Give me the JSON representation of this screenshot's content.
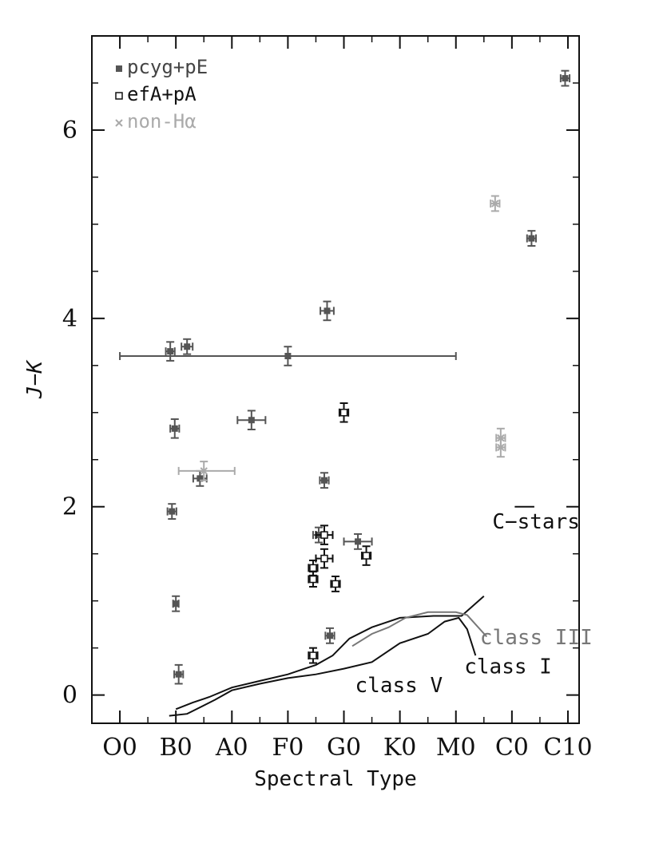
{
  "chart_data": {
    "type": "scatter",
    "xlabel": "Spectral Type",
    "ylabel": "J−K",
    "xlim": [
      -0.5,
      8.2
    ],
    "ylim": [
      -0.3,
      7.0
    ],
    "x_ticks": [
      {
        "value": 0,
        "label": "O0"
      },
      {
        "value": 1,
        "label": "B0"
      },
      {
        "value": 2,
        "label": "A0"
      },
      {
        "value": 3,
        "label": "F0"
      },
      {
        "value": 4,
        "label": "G0"
      },
      {
        "value": 5,
        "label": "K0"
      },
      {
        "value": 6,
        "label": "M0"
      },
      {
        "value": 7,
        "label": "C0"
      },
      {
        "value": 8,
        "label": "C10"
      }
    ],
    "y_ticks": [
      {
        "value": 0,
        "label": "0"
      },
      {
        "value": 2,
        "label": "2"
      },
      {
        "value": 4,
        "label": "4"
      },
      {
        "value": 6,
        "label": "6"
      }
    ],
    "y_minor_step": 0.5,
    "x_minor_step": 0.5,
    "legend_position": "top-left",
    "series": [
      {
        "name": "pcyg+pE",
        "marker": "filled-square",
        "color": "#555555",
        "points": [
          {
            "x": 0.9,
            "y": 3.65,
            "xerr": 0.08,
            "yerr": 0.1
          },
          {
            "x": 1.2,
            "y": 3.7,
            "xerr": 0.1,
            "yerr": 0.08
          },
          {
            "x": 3.0,
            "y": 3.6,
            "xerr_low": 3.0,
            "xerr_high": 3.0,
            "yerr": 0.1
          },
          {
            "x": 3.7,
            "y": 4.08,
            "xerr": 0.12,
            "yerr": 0.1
          },
          {
            "x": 0.98,
            "y": 2.83,
            "xerr": 0.08,
            "yerr": 0.1
          },
          {
            "x": 2.35,
            "y": 2.92,
            "xerr": 0.25,
            "yerr": 0.1
          },
          {
            "x": 1.43,
            "y": 2.3,
            "xerr": 0.12,
            "yerr": 0.08
          },
          {
            "x": 3.65,
            "y": 2.28,
            "xerr": 0.08,
            "yerr": 0.08
          },
          {
            "x": 0.93,
            "y": 1.95,
            "xerr": 0.08,
            "yerr": 0.08
          },
          {
            "x": 1.0,
            "y": 0.97,
            "xerr": 0.05,
            "yerr": 0.08
          },
          {
            "x": 1.05,
            "y": 0.22,
            "xerr": 0.08,
            "yerr": 0.1
          },
          {
            "x": 3.55,
            "y": 1.7,
            "xerr": 0.1,
            "yerr": 0.08
          },
          {
            "x": 3.75,
            "y": 0.63,
            "xerr": 0.08,
            "yerr": 0.08
          },
          {
            "x": 4.25,
            "y": 1.63,
            "xerr": 0.25,
            "yerr": 0.08
          },
          {
            "x": 7.35,
            "y": 4.85,
            "xerr": 0.08,
            "yerr": 0.08
          },
          {
            "x": 7.95,
            "y": 6.55,
            "xerr": 0.08,
            "yerr": 0.08
          }
        ]
      },
      {
        "name": "efA+pA",
        "marker": "open-square",
        "color": "#111111",
        "points": [
          {
            "x": 4.0,
            "y": 3.0,
            "xerr": 0.08,
            "yerr": 0.1
          },
          {
            "x": 3.65,
            "y": 1.7,
            "xerr": 0.15,
            "yerr": 0.1
          },
          {
            "x": 3.65,
            "y": 1.45,
            "xerr": 0.15,
            "yerr": 0.1
          },
          {
            "x": 4.4,
            "y": 1.48,
            "xerr": 0.08,
            "yerr": 0.1
          },
          {
            "x": 3.45,
            "y": 1.35,
            "xerr": 0.08,
            "yerr": 0.08
          },
          {
            "x": 3.45,
            "y": 1.23,
            "xerr": 0.08,
            "yerr": 0.08
          },
          {
            "x": 3.85,
            "y": 1.18,
            "xerr": 0.08,
            "yerr": 0.08
          },
          {
            "x": 3.45,
            "y": 0.42,
            "xerr": 0.08,
            "yerr": 0.08
          }
        ]
      },
      {
        "name": "non-Hα",
        "marker": "cross",
        "color": "#aaaaaa",
        "points": [
          {
            "x": 1.5,
            "y": 2.38,
            "xerr_low": 0.45,
            "xerr_high": 0.55,
            "yerr": 0.1
          },
          {
            "x": 6.7,
            "y": 5.22,
            "xerr": 0.08,
            "yerr": 0.08
          },
          {
            "x": 6.8,
            "y": 2.73,
            "xerr": 0.08,
            "yerr": 0.1
          },
          {
            "x": 6.8,
            "y": 2.63,
            "xerr": 0.08,
            "yerr": 0.1
          }
        ]
      }
    ],
    "reference_curves": [
      {
        "label": "class V",
        "color": "#111111",
        "points": [
          [
            0.88,
            -0.22
          ],
          [
            1.2,
            -0.2
          ],
          [
            1.7,
            -0.05
          ],
          [
            2.0,
            0.05
          ],
          [
            2.5,
            0.12
          ],
          [
            3.0,
            0.18
          ],
          [
            3.5,
            0.22
          ],
          [
            4.0,
            0.28
          ],
          [
            4.5,
            0.35
          ],
          [
            5.0,
            0.55
          ],
          [
            5.5,
            0.65
          ],
          [
            5.8,
            0.78
          ],
          [
            6.05,
            0.82
          ],
          [
            6.2,
            0.7
          ],
          [
            6.35,
            0.42
          ]
        ]
      },
      {
        "label": "class I",
        "color": "#111111",
        "points": [
          [
            1.0,
            -0.15
          ],
          [
            1.3,
            -0.08
          ],
          [
            1.6,
            -0.02
          ],
          [
            2.0,
            0.08
          ],
          [
            2.5,
            0.15
          ],
          [
            3.0,
            0.22
          ],
          [
            3.3,
            0.28
          ],
          [
            3.5,
            0.32
          ],
          [
            3.8,
            0.42
          ],
          [
            4.1,
            0.6
          ],
          [
            4.5,
            0.72
          ],
          [
            5.0,
            0.82
          ],
          [
            5.6,
            0.84
          ],
          [
            6.1,
            0.84
          ],
          [
            6.5,
            1.05
          ]
        ]
      },
      {
        "label": "class III",
        "color": "#777777",
        "points": [
          [
            4.15,
            0.52
          ],
          [
            4.5,
            0.65
          ],
          [
            4.8,
            0.72
          ],
          [
            5.1,
            0.82
          ],
          [
            5.5,
            0.88
          ],
          [
            6.0,
            0.88
          ],
          [
            6.2,
            0.85
          ],
          [
            6.55,
            0.62
          ]
        ]
      }
    ],
    "annotations": [
      {
        "text": "C−stars",
        "x": 6.65,
        "y": 1.77,
        "color": "#111111"
      },
      {
        "text": "class III",
        "x": 6.43,
        "y": 0.54,
        "color": "#777777"
      },
      {
        "text": "class I",
        "x": 6.15,
        "y": 0.23,
        "color": "#111111"
      },
      {
        "text": "class V",
        "x": 4.2,
        "y": 0.03,
        "color": "#111111"
      }
    ],
    "c_stars_marker": {
      "x_start": 7.05,
      "x_end": 7.4,
      "y": 2.0
    }
  }
}
